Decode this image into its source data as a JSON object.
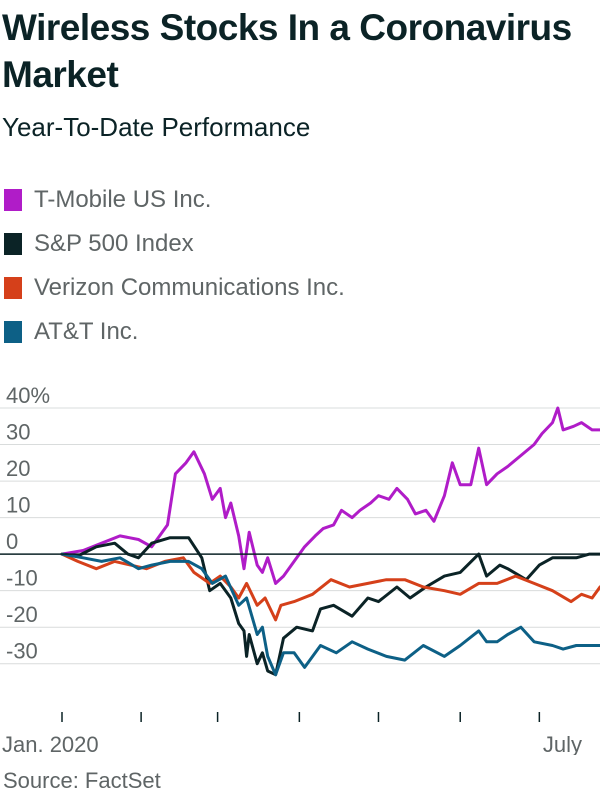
{
  "title": "Wireless Stocks In a Coronavirus Market",
  "subtitle": "Year-To-Date Performance",
  "source": "Source: FactSet",
  "legend": [
    {
      "name": "T-Mobile US Inc.",
      "color": "#b01cc8"
    },
    {
      "name": "S&P 500 Index",
      "color": "#0b2326"
    },
    {
      "name": "Verizon Communications Inc.",
      "color": "#d5401a"
    },
    {
      "name": "AT&T Inc.",
      "color": "#0d6086"
    }
  ],
  "chart_data": {
    "type": "line",
    "ylim": [
      -35,
      40
    ],
    "yticks": [
      {
        "value": 40,
        "label": "40%"
      },
      {
        "value": 30,
        "label": "30"
      },
      {
        "value": 20,
        "label": "20"
      },
      {
        "value": 10,
        "label": "10"
      },
      {
        "value": 0,
        "label": "0"
      },
      {
        "value": -10,
        "label": "-10"
      },
      {
        "value": -20,
        "label": "-20"
      },
      {
        "value": -30,
        "label": "-30"
      }
    ],
    "x_labels": [
      "Jan. 2020",
      "July"
    ],
    "x_range": [
      "2020-01-02",
      "2020-07-24"
    ],
    "x_ticks": [
      "2020-01-02",
      "2020-02-01",
      "2020-03-01",
      "2020-04-01",
      "2020-05-01",
      "2020-06-01",
      "2020-07-01"
    ],
    "series": [
      {
        "name": "T-Mobile US Inc.",
        "color": "#b01cc8",
        "points": [
          [
            "2020-01-02",
            0
          ],
          [
            "2020-01-10",
            1
          ],
          [
            "2020-01-17",
            3
          ],
          [
            "2020-01-24",
            5
          ],
          [
            "2020-01-31",
            4
          ],
          [
            "2020-02-05",
            2
          ],
          [
            "2020-02-08",
            5
          ],
          [
            "2020-02-11",
            8
          ],
          [
            "2020-02-14",
            22
          ],
          [
            "2020-02-18",
            25
          ],
          [
            "2020-02-21",
            28
          ],
          [
            "2020-02-25",
            22
          ],
          [
            "2020-02-28",
            15
          ],
          [
            "2020-03-02",
            18
          ],
          [
            "2020-03-04",
            10
          ],
          [
            "2020-03-06",
            14
          ],
          [
            "2020-03-09",
            5
          ],
          [
            "2020-03-11",
            -4
          ],
          [
            "2020-03-13",
            6
          ],
          [
            "2020-03-16",
            -3
          ],
          [
            "2020-03-18",
            -5
          ],
          [
            "2020-03-20",
            -1
          ],
          [
            "2020-03-23",
            -8
          ],
          [
            "2020-03-26",
            -6
          ],
          [
            "2020-03-30",
            -2
          ],
          [
            "2020-04-03",
            2
          ],
          [
            "2020-04-07",
            5
          ],
          [
            "2020-04-10",
            7
          ],
          [
            "2020-04-14",
            8
          ],
          [
            "2020-04-17",
            12
          ],
          [
            "2020-04-21",
            10
          ],
          [
            "2020-04-24",
            12
          ],
          [
            "2020-04-28",
            14
          ],
          [
            "2020-05-01",
            16
          ],
          [
            "2020-05-05",
            15
          ],
          [
            "2020-05-08",
            18
          ],
          [
            "2020-05-12",
            15
          ],
          [
            "2020-05-15",
            11
          ],
          [
            "2020-05-19",
            12
          ],
          [
            "2020-05-22",
            9
          ],
          [
            "2020-05-26",
            16
          ],
          [
            "2020-05-29",
            25
          ],
          [
            "2020-06-01",
            19
          ],
          [
            "2020-06-05",
            19
          ],
          [
            "2020-06-08",
            29
          ],
          [
            "2020-06-11",
            19
          ],
          [
            "2020-06-15",
            22
          ],
          [
            "2020-06-19",
            24
          ],
          [
            "2020-06-24",
            27
          ],
          [
            "2020-06-29",
            30
          ],
          [
            "2020-07-02",
            33
          ],
          [
            "2020-07-06",
            36
          ],
          [
            "2020-07-08",
            40
          ],
          [
            "2020-07-10",
            34
          ],
          [
            "2020-07-14",
            35
          ],
          [
            "2020-07-17",
            36
          ],
          [
            "2020-07-21",
            34
          ],
          [
            "2020-07-24",
            34
          ]
        ]
      },
      {
        "name": "S&P 500 Index",
        "color": "#0b2326",
        "points": [
          [
            "2020-01-02",
            0
          ],
          [
            "2020-01-08",
            -0.5
          ],
          [
            "2020-01-15",
            2
          ],
          [
            "2020-01-22",
            3
          ],
          [
            "2020-01-27",
            0
          ],
          [
            "2020-01-31",
            -1
          ],
          [
            "2020-02-05",
            3
          ],
          [
            "2020-02-12",
            4.5
          ],
          [
            "2020-02-19",
            4.5
          ],
          [
            "2020-02-24",
            -1
          ],
          [
            "2020-02-27",
            -10
          ],
          [
            "2020-03-02",
            -8
          ],
          [
            "2020-03-06",
            -12
          ],
          [
            "2020-03-09",
            -19
          ],
          [
            "2020-03-11",
            -21
          ],
          [
            "2020-03-12",
            -28
          ],
          [
            "2020-03-13",
            -22
          ],
          [
            "2020-03-16",
            -30
          ],
          [
            "2020-03-18",
            -27
          ],
          [
            "2020-03-20",
            -32
          ],
          [
            "2020-03-23",
            -33
          ],
          [
            "2020-03-26",
            -23
          ],
          [
            "2020-03-31",
            -20
          ],
          [
            "2020-04-06",
            -21
          ],
          [
            "2020-04-09",
            -15
          ],
          [
            "2020-04-14",
            -14
          ],
          [
            "2020-04-21",
            -17
          ],
          [
            "2020-04-27",
            -12
          ],
          [
            "2020-05-01",
            -13
          ],
          [
            "2020-05-08",
            -9
          ],
          [
            "2020-05-13",
            -12
          ],
          [
            "2020-05-19",
            -9
          ],
          [
            "2020-05-26",
            -6
          ],
          [
            "2020-06-01",
            -5
          ],
          [
            "2020-06-08",
            0
          ],
          [
            "2020-06-11",
            -6
          ],
          [
            "2020-06-16",
            -3
          ],
          [
            "2020-06-19",
            -4
          ],
          [
            "2020-06-26",
            -7
          ],
          [
            "2020-07-01",
            -3
          ],
          [
            "2020-07-06",
            -1
          ],
          [
            "2020-07-10",
            -1
          ],
          [
            "2020-07-15",
            -1
          ],
          [
            "2020-07-20",
            0
          ],
          [
            "2020-07-24",
            0
          ]
        ]
      },
      {
        "name": "Verizon Communications Inc.",
        "color": "#d5401a",
        "points": [
          [
            "2020-01-02",
            0
          ],
          [
            "2020-01-08",
            -2
          ],
          [
            "2020-01-15",
            -4
          ],
          [
            "2020-01-22",
            -2
          ],
          [
            "2020-01-28",
            -3
          ],
          [
            "2020-02-03",
            -4
          ],
          [
            "2020-02-10",
            -2
          ],
          [
            "2020-02-17",
            -1
          ],
          [
            "2020-02-21",
            -5
          ],
          [
            "2020-02-27",
            -8
          ],
          [
            "2020-03-02",
            -6
          ],
          [
            "2020-03-06",
            -9
          ],
          [
            "2020-03-09",
            -12
          ],
          [
            "2020-03-12",
            -8
          ],
          [
            "2020-03-16",
            -14
          ],
          [
            "2020-03-19",
            -12
          ],
          [
            "2020-03-23",
            -18
          ],
          [
            "2020-03-25",
            -14
          ],
          [
            "2020-03-30",
            -13
          ],
          [
            "2020-04-06",
            -11
          ],
          [
            "2020-04-13",
            -7
          ],
          [
            "2020-04-20",
            -9
          ],
          [
            "2020-04-27",
            -8
          ],
          [
            "2020-05-04",
            -7
          ],
          [
            "2020-05-11",
            -7
          ],
          [
            "2020-05-18",
            -9
          ],
          [
            "2020-05-26",
            -10
          ],
          [
            "2020-06-01",
            -11
          ],
          [
            "2020-06-08",
            -8
          ],
          [
            "2020-06-15",
            -8
          ],
          [
            "2020-06-22",
            -6
          ],
          [
            "2020-06-29",
            -8
          ],
          [
            "2020-07-06",
            -10
          ],
          [
            "2020-07-13",
            -13
          ],
          [
            "2020-07-17",
            -11
          ],
          [
            "2020-07-21",
            -12
          ],
          [
            "2020-07-24",
            -9
          ]
        ]
      },
      {
        "name": "AT&T Inc.",
        "color": "#0d6086",
        "points": [
          [
            "2020-01-02",
            0
          ],
          [
            "2020-01-10",
            -1
          ],
          [
            "2020-01-17",
            -2
          ],
          [
            "2020-01-24",
            -1
          ],
          [
            "2020-01-31",
            -4
          ],
          [
            "2020-02-05",
            -3
          ],
          [
            "2020-02-12",
            -2
          ],
          [
            "2020-02-19",
            -2
          ],
          [
            "2020-02-24",
            -4
          ],
          [
            "2020-02-28",
            -8
          ],
          [
            "2020-03-04",
            -6
          ],
          [
            "2020-03-09",
            -14
          ],
          [
            "2020-03-12",
            -12
          ],
          [
            "2020-03-16",
            -22
          ],
          [
            "2020-03-18",
            -20
          ],
          [
            "2020-03-20",
            -28
          ],
          [
            "2020-03-23",
            -33
          ],
          [
            "2020-03-26",
            -27
          ],
          [
            "2020-03-30",
            -27
          ],
          [
            "2020-04-03",
            -31
          ],
          [
            "2020-04-09",
            -25
          ],
          [
            "2020-04-15",
            -27
          ],
          [
            "2020-04-21",
            -24
          ],
          [
            "2020-04-27",
            -26
          ],
          [
            "2020-05-04",
            -28
          ],
          [
            "2020-05-11",
            -29
          ],
          [
            "2020-05-18",
            -25
          ],
          [
            "2020-05-26",
            -28
          ],
          [
            "2020-06-01",
            -25
          ],
          [
            "2020-06-08",
            -21
          ],
          [
            "2020-06-11",
            -24
          ],
          [
            "2020-06-15",
            -24
          ],
          [
            "2020-06-19",
            -22
          ],
          [
            "2020-06-24",
            -20
          ],
          [
            "2020-06-29",
            -24
          ],
          [
            "2020-07-06",
            -25
          ],
          [
            "2020-07-10",
            -26
          ],
          [
            "2020-07-15",
            -25
          ],
          [
            "2020-07-20",
            -25
          ],
          [
            "2020-07-24",
            -25
          ]
        ]
      }
    ]
  }
}
